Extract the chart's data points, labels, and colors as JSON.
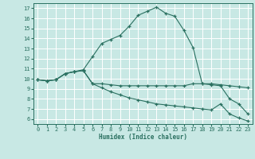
{
  "xlabel": "Humidex (Indice chaleur)",
  "xlim": [
    -0.5,
    23.5
  ],
  "ylim": [
    5.5,
    17.5
  ],
  "yticks": [
    6,
    7,
    8,
    9,
    10,
    11,
    12,
    13,
    14,
    15,
    16,
    17
  ],
  "xticks": [
    0,
    1,
    2,
    3,
    4,
    5,
    6,
    7,
    8,
    9,
    10,
    11,
    12,
    13,
    14,
    15,
    16,
    17,
    18,
    19,
    20,
    21,
    22,
    23
  ],
  "bg_color": "#c8e8e4",
  "grid_color": "#ffffff",
  "line_color": "#2a7060",
  "curve1_x": [
    0,
    1,
    2,
    3,
    4,
    5,
    6,
    7,
    8,
    9,
    10,
    11,
    12,
    13,
    14,
    15,
    16,
    17,
    18,
    19,
    20,
    21,
    22,
    23
  ],
  "curve1_y": [
    9.9,
    9.8,
    9.9,
    10.5,
    10.7,
    10.8,
    9.5,
    9.5,
    9.4,
    9.3,
    9.3,
    9.3,
    9.3,
    9.3,
    9.3,
    9.3,
    9.3,
    9.5,
    9.5,
    9.5,
    9.4,
    9.3,
    9.2,
    9.1
  ],
  "curve2_x": [
    0,
    1,
    2,
    3,
    4,
    5,
    6,
    7,
    8,
    9,
    10,
    11,
    12,
    13,
    14,
    15,
    16,
    17,
    18,
    19,
    20,
    21,
    22,
    23
  ],
  "curve2_y": [
    9.9,
    9.8,
    9.9,
    10.5,
    10.7,
    10.9,
    12.2,
    13.5,
    13.9,
    14.3,
    15.2,
    16.3,
    16.7,
    17.1,
    16.5,
    16.2,
    14.8,
    13.1,
    9.5,
    9.4,
    9.3,
    8.0,
    7.5,
    6.5
  ],
  "curve3_x": [
    0,
    1,
    2,
    3,
    4,
    5,
    6,
    7,
    8,
    9,
    10,
    11,
    12,
    13,
    14,
    15,
    16,
    17,
    18,
    19,
    20,
    21,
    22,
    23
  ],
  "curve3_y": [
    9.9,
    9.8,
    9.9,
    10.5,
    10.7,
    10.8,
    9.5,
    9.1,
    8.7,
    8.4,
    8.1,
    7.9,
    7.7,
    7.5,
    7.4,
    7.3,
    7.2,
    7.1,
    7.0,
    6.9,
    7.5,
    6.5,
    6.1,
    5.8
  ]
}
